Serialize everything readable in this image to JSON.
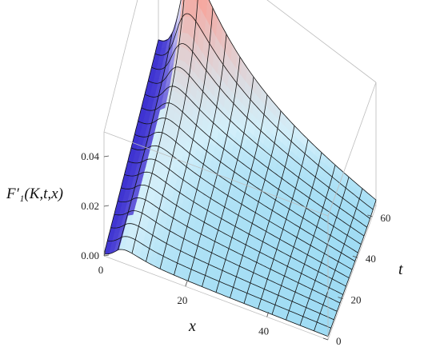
{
  "chart_data": {
    "type": "surface3d",
    "title": "",
    "zlabel": "F′₁(K,t,x)",
    "xlabel": "x",
    "ylabel": "t",
    "xlim": [
      0,
      55
    ],
    "ylim": [
      0,
      65
    ],
    "zlim": [
      0,
      0.05
    ],
    "x_ticks": [
      "0",
      "20",
      "40"
    ],
    "x_tick_values": [
      0,
      20,
      40
    ],
    "y_ticks": [
      "0",
      "20",
      "40",
      "60"
    ],
    "y_tick_values": [
      0,
      20,
      40,
      60
    ],
    "z_ticks": [
      "0.00",
      "0.02",
      "0.04"
    ],
    "z_tick_values": [
      0,
      0.02,
      0.04
    ],
    "mesh": {
      "x_lines": 16,
      "t_lines": 16
    },
    "approx_peak": {
      "x": 6,
      "t": 62,
      "value": 0.05
    },
    "colors": {
      "low": "#3a2fd0",
      "mid": "#ffffff",
      "high": "#f5a8a0",
      "flat": "#8fd6f2"
    }
  }
}
